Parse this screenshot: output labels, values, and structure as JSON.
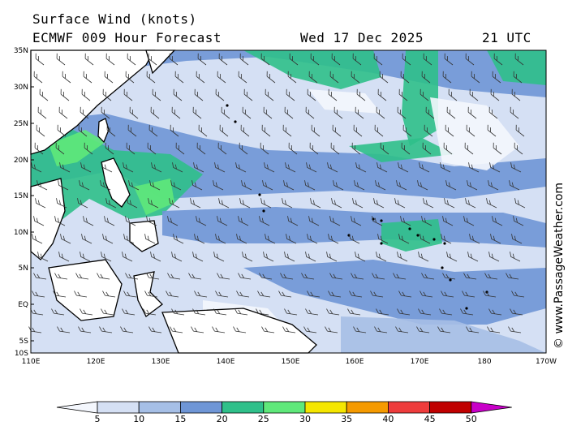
{
  "header": {
    "title": "Surface Wind (knots)",
    "model": "ECMWF 009 Hour Forecast",
    "date": "Wed 17 Dec 2025",
    "time": "21 UTC"
  },
  "map": {
    "lat_labels": [
      "35N",
      "30N",
      "25N",
      "20N",
      "15N",
      "10N",
      "5N",
      "EQ",
      "5S",
      "10S"
    ],
    "lon_labels": [
      "110E",
      "120E",
      "130E",
      "140E",
      "150E",
      "160E",
      "170E",
      "180",
      "170W"
    ],
    "colors": {
      "c0_5": "#f4f7fd",
      "c5_10": "#d5e0f4",
      "c10_15": "#a6bfe6",
      "c15_20": "#6f96d6",
      "c20_25": "#2fc08a",
      "c25_30": "#5fe87a",
      "c30_35": "#f5e600",
      "c35_40": "#f59a00",
      "c40_45": "#ee3c3c",
      "c45_50": "#c00000",
      "c50_plus": "#c800c8",
      "land": "#ffffff",
      "coast": "#000000"
    }
  },
  "legend": {
    "ticks": [
      "5",
      "10",
      "15",
      "20",
      "25",
      "30",
      "35",
      "40",
      "45",
      "50"
    ]
  },
  "copyright": "© www.PassageWeather.com"
}
